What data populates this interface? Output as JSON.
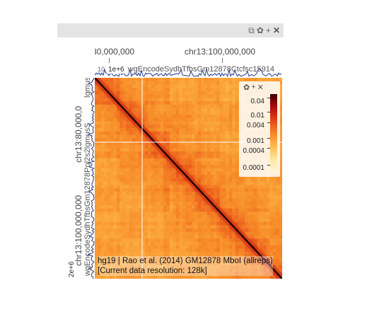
{
  "view_header": {
    "icons": [
      "copy-icon",
      "gear-icon",
      "plus-icon",
      "close-icon"
    ],
    "glyphs": {
      "copy": "⧉",
      "gear": "✿",
      "plus": "+",
      "close": "✕"
    }
  },
  "top_axis": {
    "tick_left_label": "80,000,000",
    "tick_right_label": "chr13:100,000,000"
  },
  "top_track": {
    "scale_label": "1e+6",
    "track_name": "wgEncodeSydhTfbsGm12878Ctcfsc15914",
    "prefix": "10"
  },
  "left_axis": {
    "tick_top_label": "chr13:80,000,0",
    "tick_bottom_label": "chr13:100,000,000"
  },
  "left_track": {
    "track_name_upper": "lgmusS",
    "track_name_main": "wgEncodeSydhTfbsGm12878Pol2s2lgmusS",
    "scale_label": "2e+6"
  },
  "colorbar": {
    "labels": [
      "0.04",
      "0.01",
      "0.004",
      "0.001",
      "0.0004",
      "0.0001"
    ],
    "colors": [
      "#3d0000",
      "#b10b0b",
      "#e8431b",
      "#f7882a",
      "#fdbd4e",
      "#ffe9a8",
      "#fff6da"
    ]
  },
  "info": {
    "line1": "hg19 | Rao et al. (2014) GM12878 MboI (allreps)",
    "line2": "[Current data resolution: 128k]"
  },
  "heatmap": {
    "crosshair_color": "#ffffff",
    "diagonal_color": "#2a0000"
  }
}
